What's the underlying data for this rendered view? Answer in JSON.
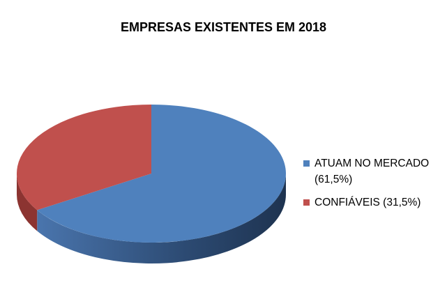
{
  "chart_data": {
    "type": "pie",
    "title": "EMPRESAS EXISTENTES EM 2018",
    "style": "3d",
    "legend_position": "right",
    "slices": [
      {
        "label": "ATUAM NO MERCADO (61,5%)",
        "value": 61.5,
        "color": "#4f81bd",
        "side_color": "#2f4f78"
      },
      {
        "label": "CONFIÁVEIS (31,5%)",
        "value": 31.5,
        "color": "#c0504d",
        "side_color": "#8c3431"
      }
    ]
  }
}
